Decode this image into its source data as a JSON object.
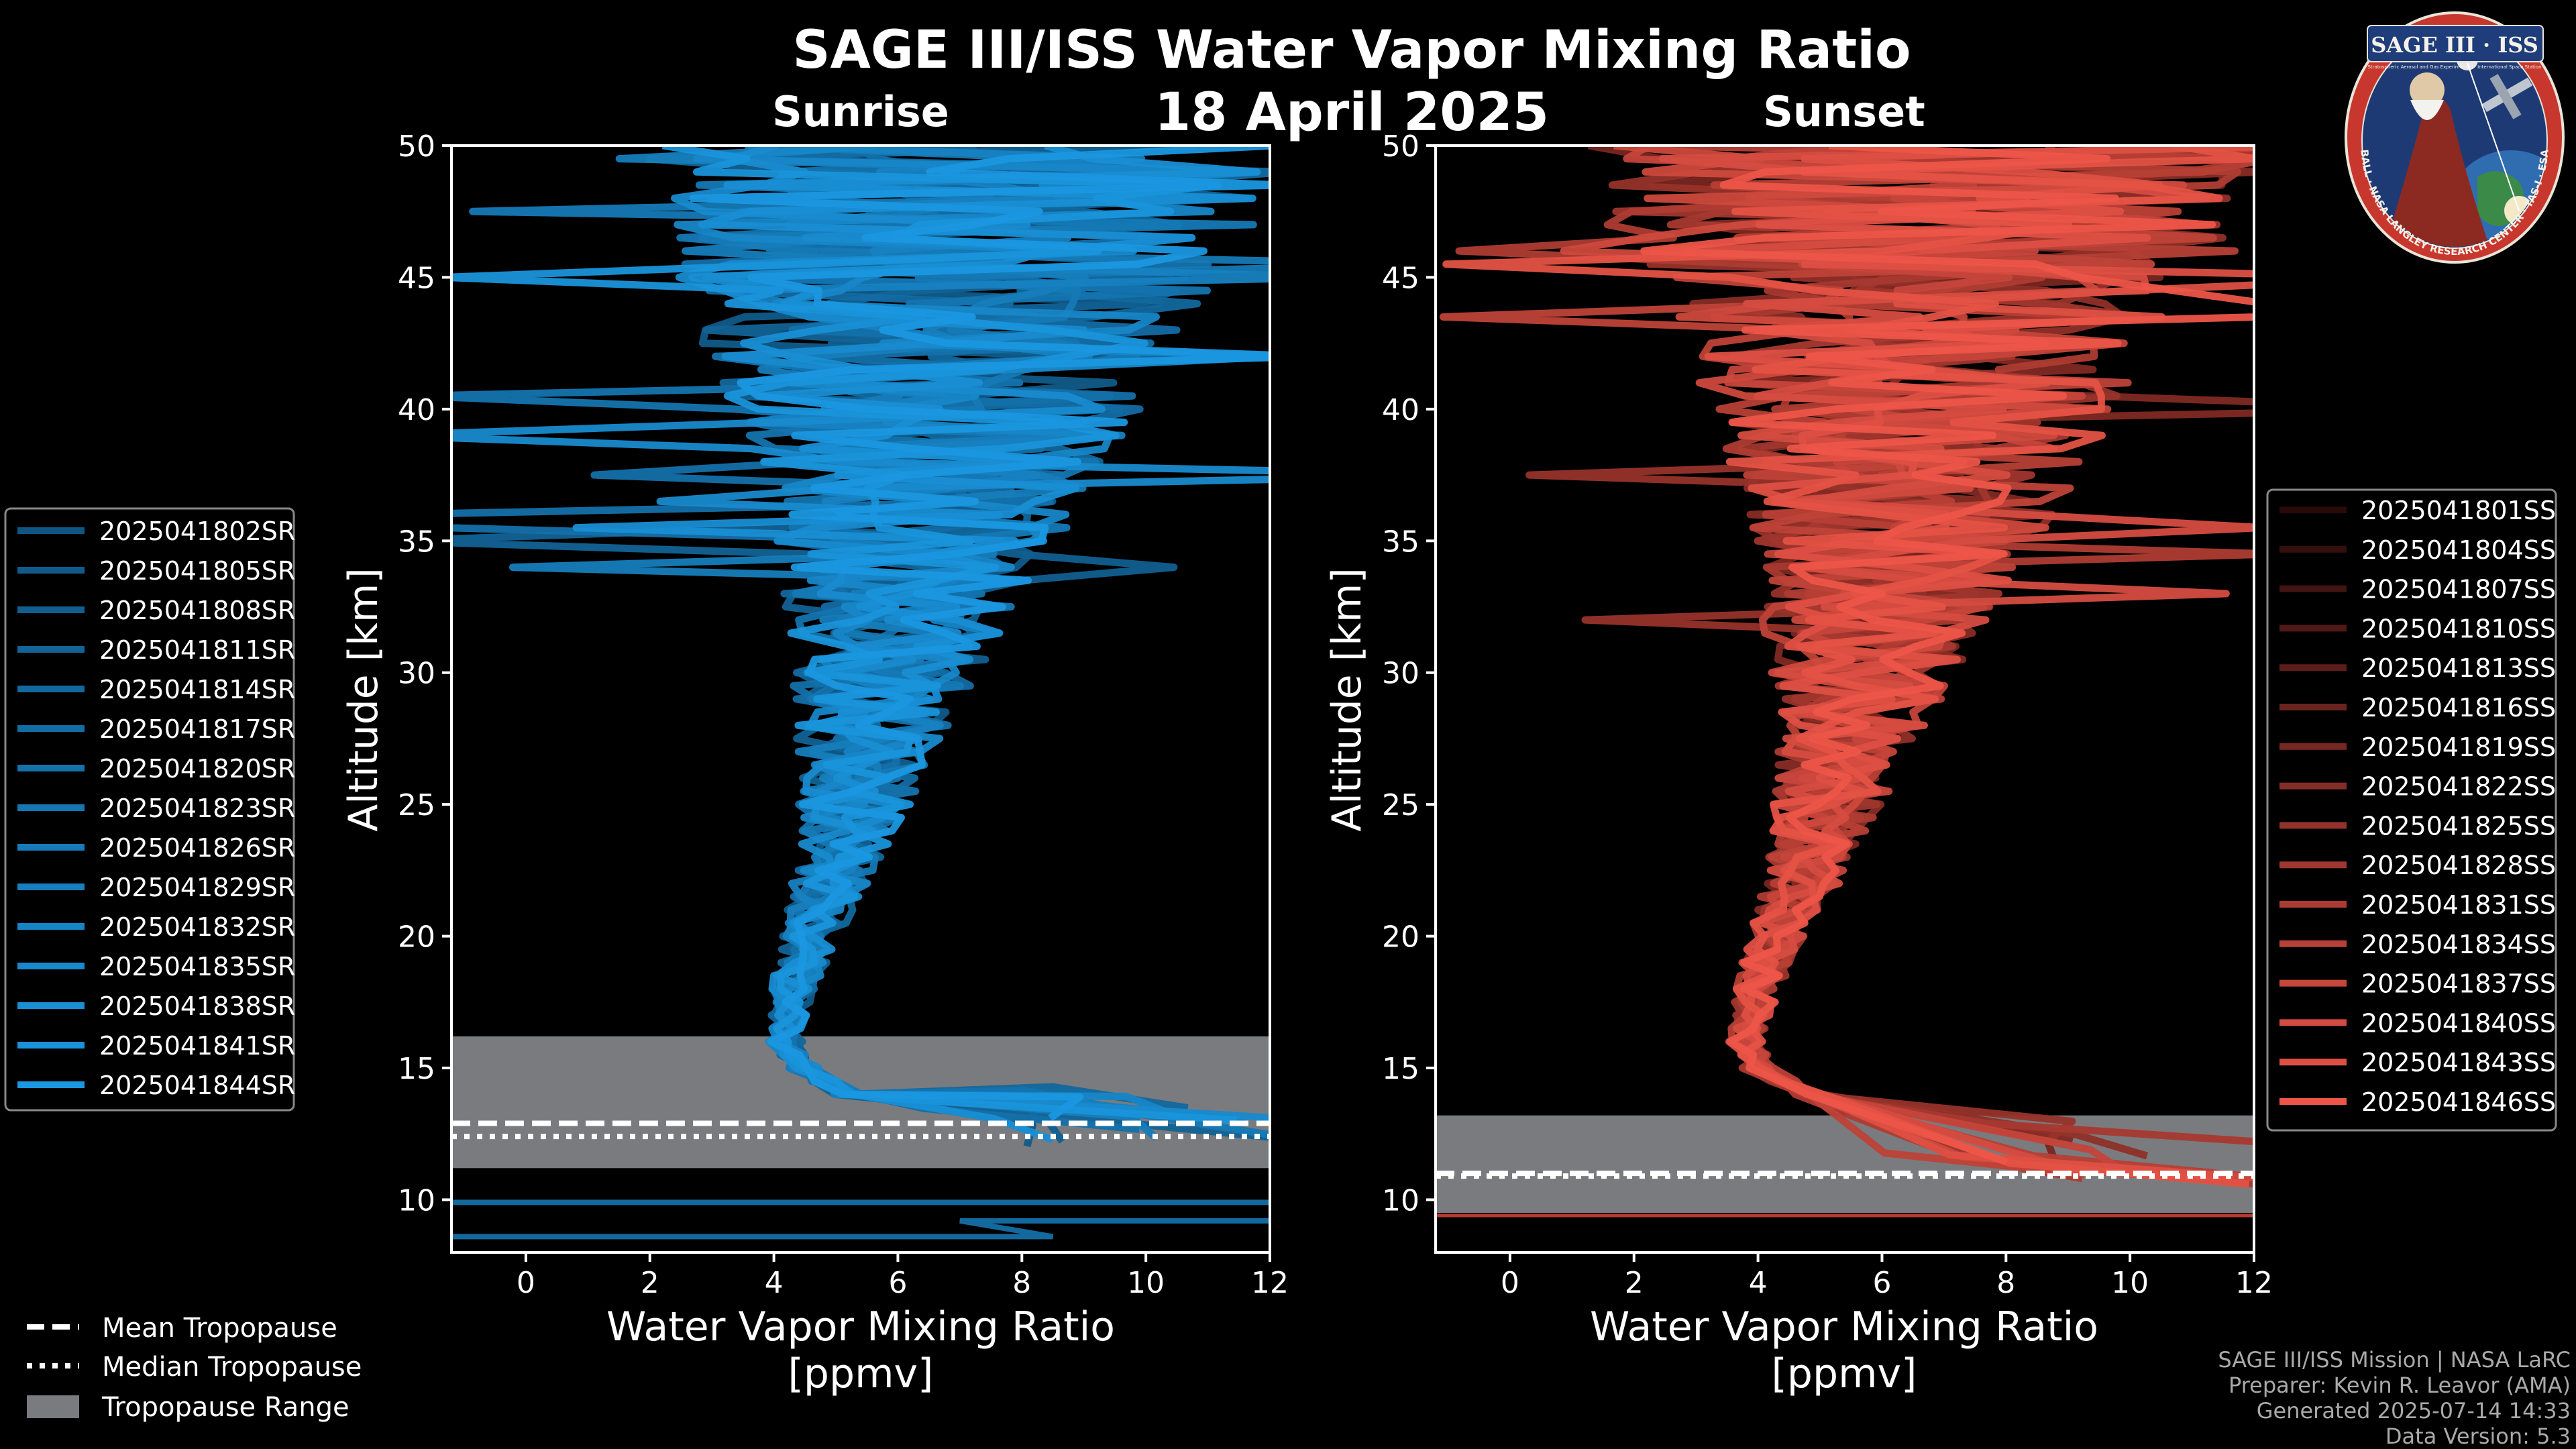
{
  "title": "SAGE III/ISS Water Vapor Mixing Ratio",
  "date": "18 April 2025",
  "panels": {
    "sunrise": {
      "title": "Sunrise"
    },
    "sunset": {
      "title": "Sunset"
    }
  },
  "axes": {
    "ylabel": "Altitude [km]",
    "xlabel_line1": "Water Vapor Mixing Ratio",
    "xlabel_line2": "[ppmv]"
  },
  "legend_tropopause": {
    "mean": "Mean Tropopause",
    "median": "Median Tropopause",
    "range": "Tropopause Range"
  },
  "footer": {
    "line1": "SAGE III/ISS Mission | NASA LaRC",
    "line2": "Preparer: Kevin R. Leavor (AMA)",
    "line3": "Generated 2025-07-14 14:33",
    "line4": "Data Version: 5.3"
  },
  "logo": {
    "name": "SAGE III · ISS",
    "subtitle": "Stratospheric Aerosol and Gas Experiment III · International Space Station",
    "ring": "BALL · NASA LANGLEY RESEARCH CENTER · TAS-I · ESA"
  },
  "colors": {
    "sunrise": "#1a97e0",
    "sunset": "#ec5548",
    "tropopause_range": "#7a7b7e",
    "sunset_range_line": "#b83a30"
  },
  "chart_data": [
    {
      "type": "line",
      "panel": "Sunrise",
      "title": "Sunrise",
      "xlabel": "Water Vapor Mixing Ratio [ppmv]",
      "ylabel": "Altitude [km]",
      "xlim": [
        -1.2,
        12
      ],
      "ylim": [
        8,
        50
      ],
      "xticks": [
        0,
        2,
        4,
        6,
        8,
        10,
        12
      ],
      "yticks": [
        10,
        15,
        20,
        25,
        30,
        35,
        40,
        45,
        50
      ],
      "series": [
        "2025041802SR",
        "2025041805SR",
        "2025041808SR",
        "2025041811SR",
        "2025041814SR",
        "2025041817SR",
        "2025041820SR",
        "2025041823SR",
        "2025041826SR",
        "2025041829SR",
        "2025041832SR",
        "2025041835SR",
        "2025041838SR",
        "2025041841SR",
        "2025041844SR"
      ],
      "mean_profile": {
        "altitude_km": [
          14,
          15,
          16,
          18,
          20,
          22,
          25,
          28,
          30,
          33,
          35,
          38,
          40,
          43,
          45,
          48,
          50
        ],
        "ppmv": [
          5.2,
          4.5,
          4.2,
          4.3,
          4.6,
          4.9,
          5.3,
          5.6,
          5.8,
          6.1,
          6.3,
          6.5,
          6.6,
          6.7,
          6.8,
          6.9,
          7.0
        ]
      },
      "tropopause": {
        "mean_km": 12.9,
        "median_km": 12.4,
        "range_km": [
          11.2,
          16.2
        ]
      }
    },
    {
      "type": "line",
      "panel": "Sunset",
      "title": "Sunset",
      "xlabel": "Water Vapor Mixing Ratio [ppmv]",
      "ylabel": "Altitude [km]",
      "xlim": [
        -1.2,
        12
      ],
      "ylim": [
        8,
        50
      ],
      "xticks": [
        0,
        2,
        4,
        6,
        8,
        10,
        12
      ],
      "yticks": [
        10,
        15,
        20,
        25,
        30,
        35,
        40,
        45,
        50
      ],
      "series": [
        "2025041801SS",
        "2025041804SS",
        "2025041807SS",
        "2025041810SS",
        "2025041813SS",
        "2025041816SS",
        "2025041819SS",
        "2025041822SS",
        "2025041825SS",
        "2025041828SS",
        "2025041831SS",
        "2025041834SS",
        "2025041837SS",
        "2025041840SS",
        "2025041843SS",
        "2025041846SS"
      ],
      "mean_profile": {
        "altitude_km": [
          14,
          15,
          16,
          18,
          20,
          22,
          25,
          28,
          30,
          33,
          35,
          38,
          40,
          43,
          45,
          48,
          50
        ],
        "ppmv": [
          4.8,
          4.0,
          3.8,
          4.0,
          4.3,
          4.7,
          5.1,
          5.5,
          5.7,
          6.0,
          6.2,
          6.4,
          6.5,
          6.6,
          6.7,
          6.8,
          6.9
        ]
      },
      "tropopause": {
        "mean_km": 11.0,
        "median_km": 11.0,
        "range_km": [
          9.5,
          13.2
        ]
      }
    }
  ]
}
